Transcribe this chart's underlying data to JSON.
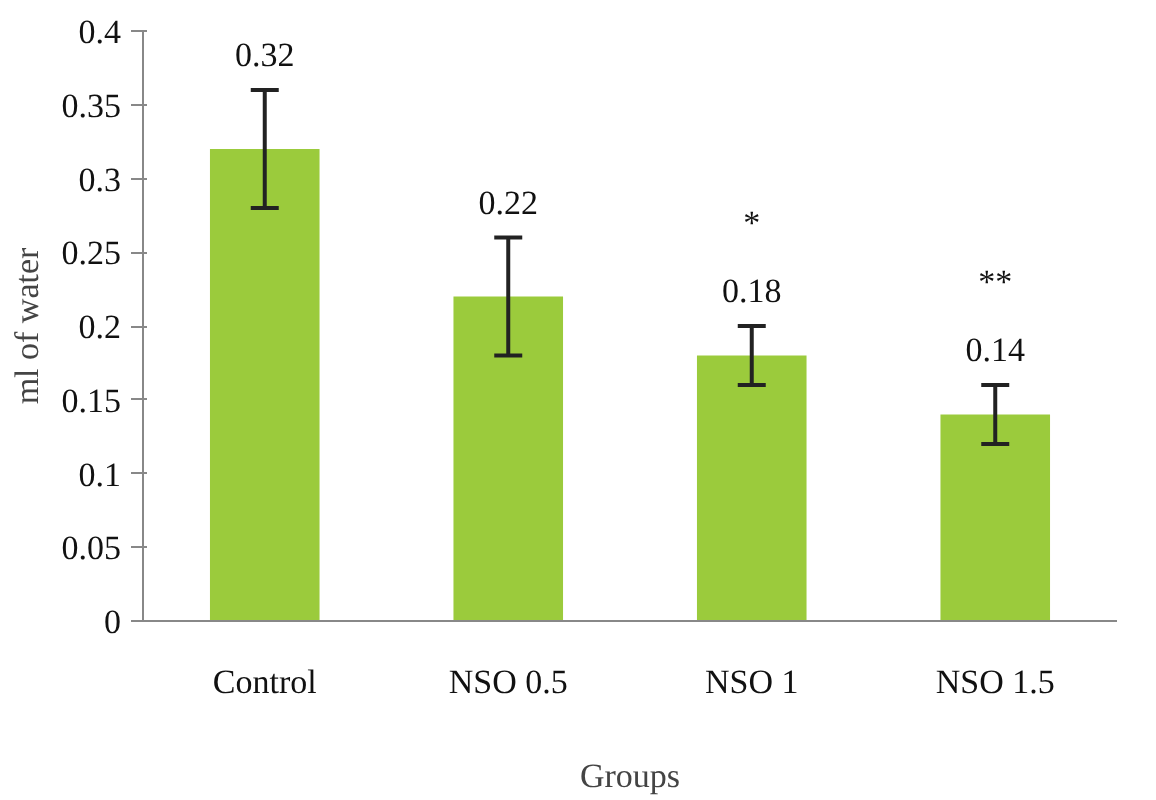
{
  "chart_data": {
    "type": "bar",
    "xlabel": "Groups",
    "ylabel": "ml of water",
    "categories": [
      "Control",
      "NSO 0.5",
      "NSO 1",
      "NSO 1.5"
    ],
    "values": [
      0.32,
      0.22,
      0.18,
      0.14
    ],
    "errors": [
      0.04,
      0.04,
      0.02,
      0.02
    ],
    "color": "#9bcb3c",
    "data_labels": true,
    "annotations": [
      "*",
      "**"
    ],
    "ylim": [
      0,
      0.4
    ],
    "yticks": [
      0,
      0.05,
      0.1,
      0.15,
      0.2,
      0.25,
      0.3,
      0.35,
      0.4
    ],
    "grid": false
  }
}
